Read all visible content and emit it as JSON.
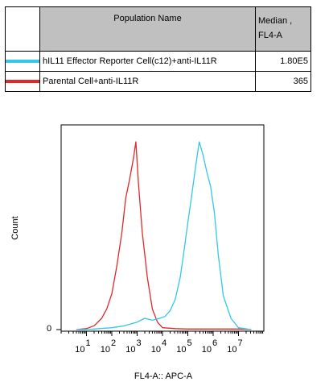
{
  "legend": {
    "col_name": "Population Name",
    "col_median_line1": "Median ,",
    "col_median_line2": "FL4-A",
    "rows": [
      {
        "name": "hIL11 Effector Reporter Cell(c12)+anti-IL11R",
        "median": "1.80E5",
        "color": "#33c8e8"
      },
      {
        "name": "Parental Cell+anti-IL11R",
        "median": "365",
        "color": "#e0282a"
      }
    ]
  },
  "chart_data": {
    "type": "line",
    "xlabel": "FL4-A:: APC-A",
    "ylabel": "Count",
    "xscale": "log",
    "xlim": [
      0,
      8
    ],
    "ylim": [
      0,
      100
    ],
    "y_tick_labels": [
      "0"
    ],
    "x_tick_labels": [
      {
        "base": "10",
        "exp": "1"
      },
      {
        "base": "10",
        "exp": "2"
      },
      {
        "base": "10",
        "exp": "3"
      },
      {
        "base": "10",
        "exp": "4"
      },
      {
        "base": "10",
        "exp": "5"
      },
      {
        "base": "10",
        "exp": "6"
      },
      {
        "base": "10",
        "exp": "7"
      }
    ],
    "series": [
      {
        "color": "#e0282a",
        "x": [
          0.6,
          1.0,
          1.3,
          1.6,
          1.8,
          2.0,
          2.2,
          2.4,
          2.55,
          2.7,
          2.85,
          2.95,
          3.05,
          3.2,
          3.4,
          3.6,
          3.8,
          4.0,
          4.5,
          5.0,
          5.5,
          6.0,
          6.5,
          7.0,
          7.5
        ],
        "y": [
          0,
          0.5,
          2,
          6,
          11,
          19,
          34,
          52,
          70,
          80,
          91,
          100,
          78,
          52,
          28,
          11,
          4,
          1,
          0.5,
          0.3,
          0.3,
          0.3,
          0.3,
          0.3,
          0
        ]
      },
      {
        "color": "#33c8e8",
        "x": [
          0.6,
          1.0,
          1.5,
          2.0,
          2.5,
          3.0,
          3.3,
          3.6,
          3.9,
          4.1,
          4.3,
          4.5,
          4.7,
          4.85,
          5.0,
          5.15,
          5.3,
          5.45,
          5.6,
          5.75,
          5.9,
          6.05,
          6.2,
          6.4,
          6.7,
          7.0,
          7.5
        ],
        "y": [
          0,
          0,
          0.5,
          1,
          2,
          4,
          6,
          5,
          6,
          7,
          10,
          16,
          28,
          42,
          57,
          71,
          86,
          100,
          93,
          84,
          76,
          62,
          40,
          18,
          6,
          1,
          0
        ]
      }
    ]
  }
}
